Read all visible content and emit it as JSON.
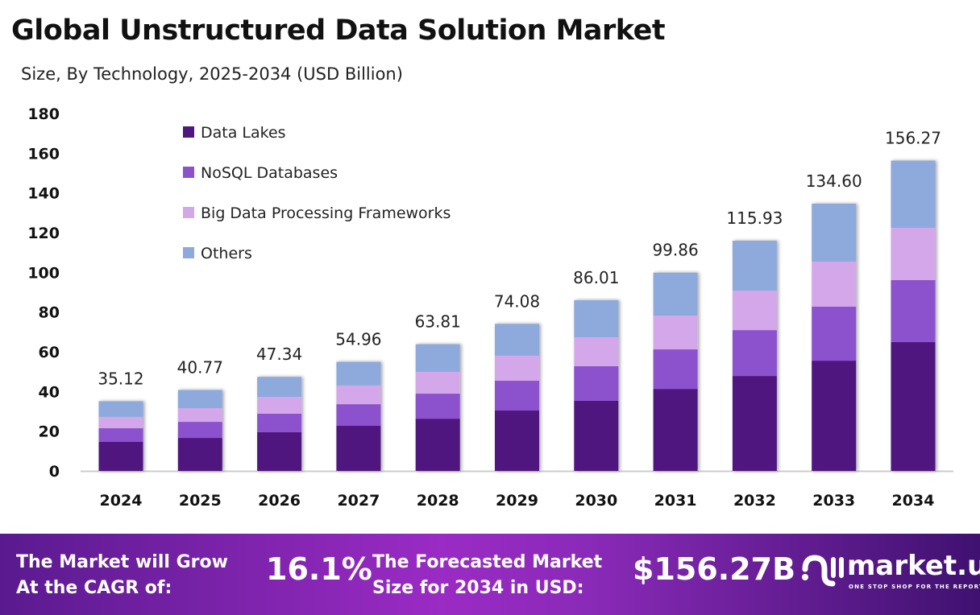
{
  "chart_data": {
    "type": "bar",
    "stacked": true,
    "title": "Global Unstructured Data Solution Market",
    "subtitle": "Size, By Technology, 2025-2034 (USD Billion)",
    "categories": [
      "2024",
      "2025",
      "2026",
      "2027",
      "2028",
      "2029",
      "2030",
      "2031",
      "2032",
      "2033",
      "2034"
    ],
    "totals": [
      "35.12",
      "40.77",
      "47.34",
      "54.96",
      "63.81",
      "74.08",
      "86.01",
      "99.86",
      "115.93",
      "134.60",
      "156.27"
    ],
    "series": [
      {
        "name": "Data Lakes",
        "color": "#4f1780",
        "values": [
          14.6,
          16.6,
          19.5,
          22.7,
          26.3,
          30.4,
          35.3,
          41.3,
          47.8,
          55.5,
          64.9
        ]
      },
      {
        "name": "NoSQL Databases",
        "color": "#8c51cd",
        "values": [
          6.9,
          8.1,
          9.3,
          10.9,
          12.6,
          15.0,
          17.4,
          19.9,
          23.1,
          27.2,
          31.2
        ]
      },
      {
        "name": "Big Data Processing Frameworks",
        "color": "#d4a7ea",
        "values": [
          5.7,
          6.9,
          8.5,
          9.4,
          11.0,
          12.6,
          14.6,
          17.0,
          19.9,
          22.7,
          26.3
        ]
      },
      {
        "name": "Others",
        "color": "#8eaadc",
        "values": [
          7.92,
          9.17,
          10.04,
          11.96,
          13.91,
          16.08,
          18.71,
          21.66,
          25.13,
          29.2,
          33.87
        ]
      }
    ],
    "ylim": [
      0,
      180
    ],
    "yticks": [
      "0",
      "20",
      "40",
      "60",
      "80",
      "100",
      "120",
      "140",
      "160",
      "180"
    ],
    "grid": false,
    "legend_position": "top-left"
  },
  "footer": {
    "cagr_label_1": "The Market will Grow",
    "cagr_label_2": "At the CAGR of:",
    "cagr_value": "16.1%",
    "size_label_1": "The Forecasted Market",
    "size_label_2": "Size for 2034 in USD:",
    "size_value": "$156.27B",
    "logo_name": "market.us",
    "logo_tagline": "ONE STOP SHOP FOR THE REPORTS"
  }
}
